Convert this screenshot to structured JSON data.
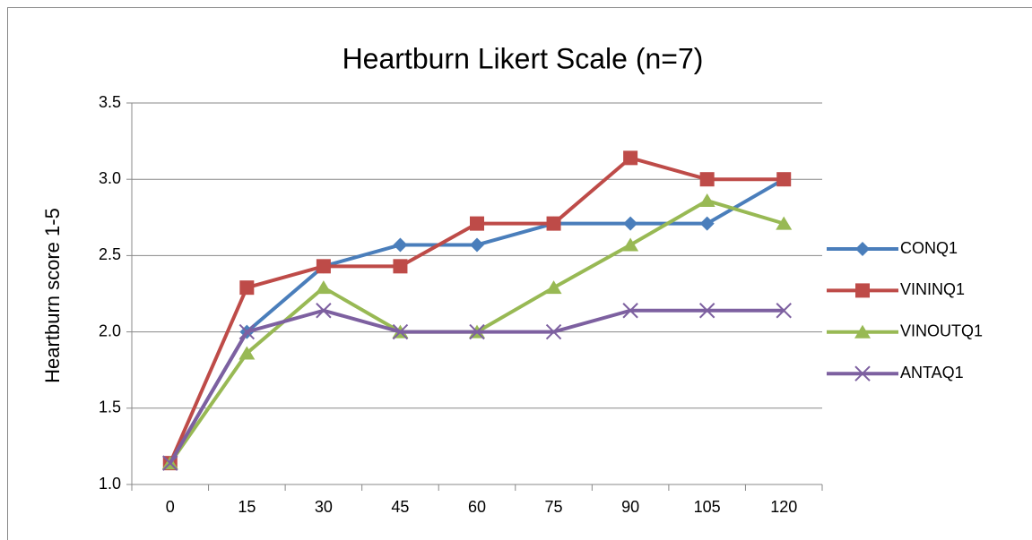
{
  "chart_data": {
    "type": "line",
    "title": "Heartburn Likert Scale (n=7)",
    "y_label": "Heartburn score 1-5",
    "categories": [
      "0",
      "15",
      "30",
      "45",
      "60",
      "75",
      "90",
      "105",
      "120"
    ],
    "series": [
      {
        "name": "CONQ1",
        "color": "#4a7ebb",
        "marker": "diamond",
        "values": [
          1.14,
          2.0,
          2.43,
          2.57,
          2.57,
          2.71,
          2.71,
          2.71,
          3.0
        ]
      },
      {
        "name": "VININQ1",
        "color": "#be4b48",
        "marker": "square",
        "values": [
          1.14,
          2.29,
          2.43,
          2.43,
          2.71,
          2.71,
          3.14,
          3.0,
          3.0
        ]
      },
      {
        "name": "VINOUTQ1",
        "color": "#98b954",
        "marker": "triangle",
        "values": [
          1.14,
          1.86,
          2.29,
          2.0,
          2.0,
          2.29,
          2.57,
          2.86,
          2.71
        ]
      },
      {
        "name": "ANTAQ1",
        "color": "#7d60a0",
        "marker": "x",
        "values": [
          1.14,
          2.0,
          2.14,
          2.0,
          2.0,
          2.0,
          2.14,
          2.14,
          2.14
        ]
      }
    ],
    "ylim": [
      1.0,
      3.5
    ],
    "yticks": [
      {
        "value": 1.0,
        "label": "1.0"
      },
      1.5,
      {
        "value": 2.0,
        "label": "2.0"
      },
      2.5,
      {
        "value": 3.0,
        "label": "3.0"
      },
      {
        "value": 3.5,
        "label": "3.5"
      }
    ],
    "grid": true,
    "legend": "right"
  }
}
